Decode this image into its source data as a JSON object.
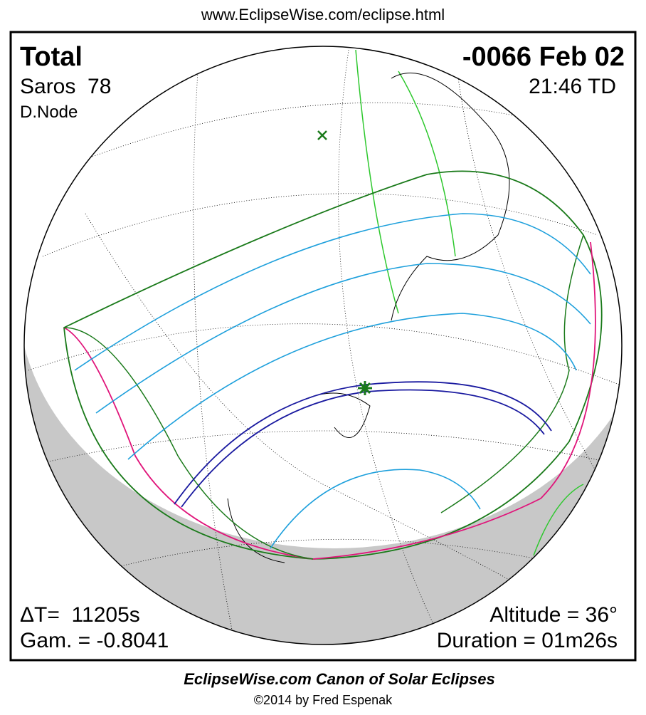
{
  "header": {
    "url": "www.EclipseWise.com/eclipse.html"
  },
  "eclipse": {
    "type": "Total",
    "date": "-0066 Feb 02",
    "saros": "Saros  78",
    "time": "21:46 TD",
    "node": "D.Node",
    "delta_t": "ΔT=  11205s",
    "gamma": "Gam. = -0.8041",
    "altitude": "Altitude = 36°",
    "duration": "Duration = 01m26s"
  },
  "footer": {
    "title": "EclipseWise.com Canon of Solar Eclipses",
    "copyright": "©2014 by Fred Espenak"
  }
}
